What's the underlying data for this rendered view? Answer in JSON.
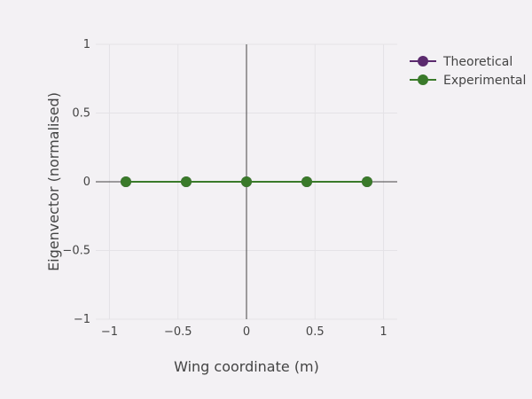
{
  "chart_data": {
    "type": "line",
    "title": "",
    "xlabel": "Wing coordinate (m)",
    "ylabel": "Eigenvector (normalised)",
    "xlim": [
      -1.1,
      1.1
    ],
    "ylim": [
      -1,
      1
    ],
    "xticks": [
      -1,
      -0.5,
      0,
      0.5,
      1
    ],
    "xtick_labels": [
      "−1",
      "−0.5",
      "0",
      "0.5",
      "1"
    ],
    "yticks": [
      -1,
      -0.5,
      0,
      0.5,
      1
    ],
    "ytick_labels": [
      "−1",
      "−0.5",
      "0",
      "0.5",
      "1"
    ],
    "grid": true,
    "legend_position": "top-right",
    "series": [
      {
        "name": "Theoretical",
        "color": "#5b2a6e",
        "x": [
          -0.88,
          -0.44,
          0,
          0.44,
          0.88
        ],
        "y": [
          0,
          0,
          0,
          0,
          0
        ]
      },
      {
        "name": "Experimental",
        "color": "#3a7a2a",
        "x": [
          -0.88,
          -0.44,
          0,
          0.44,
          0.88
        ],
        "y": [
          0,
          0,
          0,
          0,
          0
        ]
      }
    ]
  }
}
